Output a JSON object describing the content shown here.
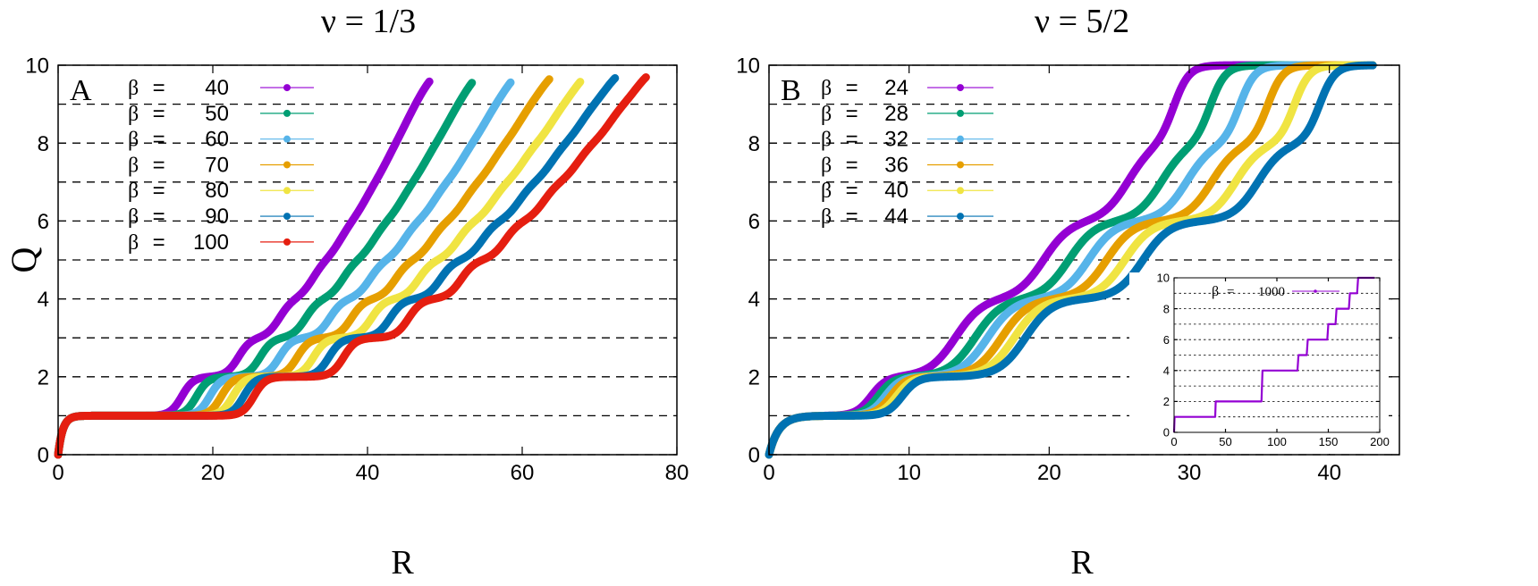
{
  "figure": {
    "ylabel": "Q",
    "colors": {
      "purple": "#9400d3",
      "green": "#009e73",
      "skyblue": "#56b4e9",
      "orange": "#e69f00",
      "yellow": "#f0e442",
      "blue": "#0072b2",
      "red": "#e51e10"
    }
  },
  "chart_data": [
    {
      "type": "line",
      "title": "ν = 1/3",
      "panel_label": "A",
      "xlabel": "R",
      "ylabel": "Q",
      "xlim": [
        0,
        80
      ],
      "ylim": [
        0,
        10
      ],
      "xticks": [
        "0",
        "20",
        "40",
        "60",
        "80"
      ],
      "yticks": [
        "0",
        "2",
        "4",
        "6",
        "8",
        "10"
      ],
      "grid": "dashed horizontal at integer Q",
      "legend_position": "top-left",
      "series": [
        {
          "name": "β = 40",
          "beta": "40",
          "color": "#9400d3",
          "endR": 48,
          "steps": [
            1.5,
            16.0,
            23.3,
            28.6,
            32.9,
            36.5,
            39.7,
            42.5,
            45.0,
            47.3
          ]
        },
        {
          "name": "β = 50",
          "beta": "50",
          "color": "#009e73",
          "endR": 53.5,
          "steps": [
            1.5,
            17.9,
            26.1,
            32.0,
            36.8,
            40.8,
            44.4,
            47.5,
            50.4,
            53.0
          ]
        },
        {
          "name": "β = 60",
          "beta": "60",
          "color": "#56b4e9",
          "endR": 58.5,
          "steps": [
            1.5,
            19.6,
            28.6,
            35.1,
            40.3,
            44.7,
            48.6,
            52.1,
            55.2,
            58.0
          ]
        },
        {
          "name": "β = 70",
          "beta": "70",
          "color": "#e69f00",
          "endR": 63.5,
          "steps": [
            1.5,
            21.1,
            30.9,
            37.9,
            43.6,
            48.3,
            52.5,
            56.2,
            59.6,
            62.7
          ]
        },
        {
          "name": "β = 80",
          "beta": "80",
          "color": "#f0e442",
          "endR": 67.5,
          "steps": [
            1.5,
            22.6,
            33.0,
            40.5,
            46.6,
            51.7,
            56.2,
            60.1,
            63.8,
            67.0
          ]
        },
        {
          "name": "β = 90",
          "beta": "90",
          "color": "#0072b2",
          "endR": 72,
          "steps": [
            1.5,
            24.0,
            35.0,
            42.9,
            49.4,
            54.8,
            59.6,
            63.8,
            67.6,
            71.1
          ]
        },
        {
          "name": "β = 100",
          "beta": "100",
          "color": "#e51e10",
          "endR": 76,
          "steps": [
            1.5,
            25.3,
            36.9,
            45.3,
            52.1,
            57.8,
            62.8,
            67.2,
            71.3,
            75.0
          ]
        }
      ]
    },
    {
      "type": "line",
      "title": "ν = 5/2",
      "panel_label": "B",
      "xlabel": "R",
      "ylabel": "Q",
      "xlim": [
        0,
        45
      ],
      "ylim": [
        0,
        10
      ],
      "xticks": [
        "0",
        "10",
        "20",
        "30",
        "40"
      ],
      "yticks": [
        "0",
        "2",
        "4",
        "6",
        "8",
        "10"
      ],
      "grid": "dashed horizontal at integer Q",
      "legend_position": "top-left",
      "series": [
        {
          "name": "β = 24",
          "beta": "24",
          "color": "#9400d3",
          "plateaus": [
            1,
            2,
            4,
            6,
            8,
            10
          ],
          "transitions": [
            0.8,
            7.3,
            13.3,
            19.6,
            25.6,
            28.9
          ]
        },
        {
          "name": "β = 28",
          "beta": "28",
          "color": "#009e73",
          "plateaus": [
            1,
            2,
            4,
            6,
            8,
            10
          ],
          "transitions": [
            0.8,
            7.8,
            14.7,
            21.4,
            28.0,
            31.5
          ]
        },
        {
          "name": "β = 32",
          "beta": "32",
          "color": "#56b4e9",
          "plateaus": [
            1,
            2,
            4,
            6,
            8,
            10
          ],
          "transitions": [
            0.8,
            8.3,
            15.6,
            22.8,
            29.8,
            33.6
          ]
        },
        {
          "name": "β = 36",
          "beta": "36",
          "color": "#e69f00",
          "plateaus": [
            1,
            2,
            4,
            6,
            8,
            10
          ],
          "transitions": [
            0.8,
            8.7,
            16.6,
            24.1,
            31.6,
            35.6
          ]
        },
        {
          "name": "β = 40",
          "beta": "40",
          "color": "#f0e442",
          "plateaus": [
            1,
            2,
            4,
            6,
            8,
            10
          ],
          "transitions": [
            0.8,
            9.1,
            17.5,
            25.4,
            33.3,
            37.5
          ]
        },
        {
          "name": "β = 44",
          "beta": "44",
          "color": "#0072b2",
          "plateaus": [
            1,
            2,
            4,
            6,
            8,
            10
          ],
          "transitions": [
            0.8,
            9.5,
            18.3,
            26.7,
            34.9,
            39.3
          ]
        }
      ],
      "inset": {
        "type": "line",
        "xlim": [
          0,
          200
        ],
        "ylim": [
          0,
          10
        ],
        "xticks": [
          "0",
          "50",
          "100",
          "150",
          "200"
        ],
        "yticks": [
          "0",
          "2",
          "4",
          "6",
          "8",
          "10"
        ],
        "series": [
          {
            "name": "β = 1000",
            "beta": "1000",
            "color": "#9400d3",
            "points": [
              [
                0,
                0
              ],
              [
                0.5,
                1
              ],
              [
                40,
                1
              ],
              [
                40.5,
                2
              ],
              [
                85,
                2
              ],
              [
                86,
                4
              ],
              [
                120,
                4
              ],
              [
                121,
                5
              ],
              [
                129,
                5
              ],
              [
                130,
                6
              ],
              [
                149,
                6
              ],
              [
                150,
                7
              ],
              [
                157,
                7
              ],
              [
                158,
                8
              ],
              [
                170,
                8
              ],
              [
                171,
                9
              ],
              [
                178,
                9
              ],
              [
                179,
                10
              ],
              [
                195,
                10
              ]
            ]
          }
        ]
      }
    }
  ]
}
